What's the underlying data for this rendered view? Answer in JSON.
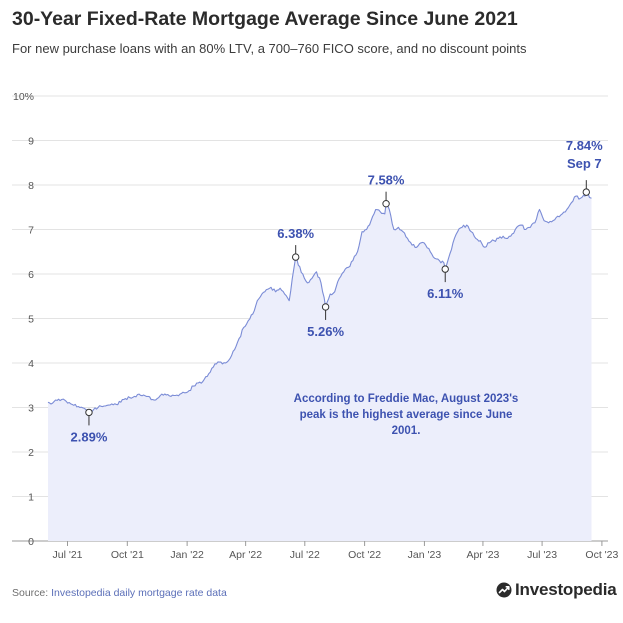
{
  "header": {
    "title": "30-Year Fixed-Rate Mortgage Average Since June 2021",
    "subtitle": "For new purchase loans with an 80% LTV, a 700–760 FICO score, and no discount points"
  },
  "footer": {
    "source_prefix": "Source: ",
    "source_link": "Investopedia daily mortgage rate data",
    "brand": "Investopedia"
  },
  "colors": {
    "line": "#7b8cd6",
    "fill": "#eceefb",
    "annotation": "#3d52b0",
    "grid": "#e3e3e3"
  },
  "chart_data": {
    "type": "area",
    "title": "30-Year Fixed-Rate Mortgage Average Since June 2021",
    "xlabel": "",
    "ylabel": "",
    "grid": "horizontal",
    "x_range": [
      "2021-06-01",
      "2023-09-25"
    ],
    "ylim": [
      0,
      10
    ],
    "y_ticks": [
      {
        "value": 0,
        "label": "0"
      },
      {
        "value": 1,
        "label": "1"
      },
      {
        "value": 2,
        "label": "2"
      },
      {
        "value": 3,
        "label": "3"
      },
      {
        "value": 4,
        "label": "4"
      },
      {
        "value": 5,
        "label": "5"
      },
      {
        "value": 6,
        "label": "6"
      },
      {
        "value": 7,
        "label": "7"
      },
      {
        "value": 8,
        "label": "8"
      },
      {
        "value": 9,
        "label": "9"
      },
      {
        "value": 10,
        "label": "10%"
      }
    ],
    "x_ticks": [
      {
        "date": "2021-07-01",
        "label": "Jul '21"
      },
      {
        "date": "2021-10-01",
        "label": "Oct '21"
      },
      {
        "date": "2022-01-01",
        "label": "Jan '22"
      },
      {
        "date": "2022-04-01",
        "label": "Apr '22"
      },
      {
        "date": "2022-07-01",
        "label": "Jul '22"
      },
      {
        "date": "2022-10-01",
        "label": "Oct '22"
      },
      {
        "date": "2023-01-01",
        "label": "Jan '23"
      },
      {
        "date": "2023-04-01",
        "label": "Apr '23"
      },
      {
        "date": "2023-07-01",
        "label": "Jul '23"
      },
      {
        "date": "2023-10-01",
        "label": "Oct '23"
      }
    ],
    "series": [
      {
        "name": "30-year fixed rate average",
        "points": [
          [
            "2021-06-01",
            3.12
          ],
          [
            "2021-06-08",
            3.1
          ],
          [
            "2021-06-15",
            3.16
          ],
          [
            "2021-06-22",
            3.18
          ],
          [
            "2021-06-29",
            3.14
          ],
          [
            "2021-07-06",
            3.08
          ],
          [
            "2021-07-13",
            3.07
          ],
          [
            "2021-07-20",
            3.0
          ],
          [
            "2021-07-27",
            2.98
          ],
          [
            "2021-08-03",
            2.89
          ],
          [
            "2021-08-10",
            2.95
          ],
          [
            "2021-08-17",
            3.0
          ],
          [
            "2021-08-24",
            3.02
          ],
          [
            "2021-08-31",
            3.05
          ],
          [
            "2021-09-07",
            3.08
          ],
          [
            "2021-09-14",
            3.07
          ],
          [
            "2021-09-21",
            3.12
          ],
          [
            "2021-09-28",
            3.2
          ],
          [
            "2021-10-05",
            3.22
          ],
          [
            "2021-10-12",
            3.25
          ],
          [
            "2021-10-19",
            3.3
          ],
          [
            "2021-10-26",
            3.28
          ],
          [
            "2021-11-02",
            3.25
          ],
          [
            "2021-11-09",
            3.18
          ],
          [
            "2021-11-16",
            3.2
          ],
          [
            "2021-11-23",
            3.3
          ],
          [
            "2021-11-30",
            3.28
          ],
          [
            "2021-12-07",
            3.25
          ],
          [
            "2021-12-14",
            3.27
          ],
          [
            "2021-12-21",
            3.3
          ],
          [
            "2021-12-28",
            3.33
          ],
          [
            "2022-01-04",
            3.38
          ],
          [
            "2022-01-11",
            3.48
          ],
          [
            "2022-01-18",
            3.55
          ],
          [
            "2022-01-25",
            3.58
          ],
          [
            "2022-02-01",
            3.7
          ],
          [
            "2022-02-08",
            3.88
          ],
          [
            "2022-02-15",
            3.98
          ],
          [
            "2022-02-22",
            4.02
          ],
          [
            "2022-03-01",
            4.0
          ],
          [
            "2022-03-08",
            4.1
          ],
          [
            "2022-03-15",
            4.3
          ],
          [
            "2022-03-22",
            4.55
          ],
          [
            "2022-03-29",
            4.8
          ],
          [
            "2022-04-05",
            4.95
          ],
          [
            "2022-04-12",
            5.1
          ],
          [
            "2022-04-19",
            5.4
          ],
          [
            "2022-04-26",
            5.55
          ],
          [
            "2022-05-03",
            5.65
          ],
          [
            "2022-05-10",
            5.7
          ],
          [
            "2022-05-17",
            5.6
          ],
          [
            "2022-05-24",
            5.68
          ],
          [
            "2022-05-31",
            5.55
          ],
          [
            "2022-06-07",
            5.4
          ],
          [
            "2022-06-14",
            6.1
          ],
          [
            "2022-06-17",
            6.38
          ],
          [
            "2022-06-21",
            6.2
          ],
          [
            "2022-06-28",
            6.0
          ],
          [
            "2022-07-05",
            5.8
          ],
          [
            "2022-07-12",
            5.9
          ],
          [
            "2022-07-19",
            6.05
          ],
          [
            "2022-07-26",
            5.8
          ],
          [
            "2022-08-02",
            5.26
          ],
          [
            "2022-08-09",
            5.55
          ],
          [
            "2022-08-16",
            5.6
          ],
          [
            "2022-08-23",
            5.9
          ],
          [
            "2022-08-30",
            6.05
          ],
          [
            "2022-09-06",
            6.15
          ],
          [
            "2022-09-13",
            6.3
          ],
          [
            "2022-09-20",
            6.5
          ],
          [
            "2022-09-27",
            6.95
          ],
          [
            "2022-10-04",
            7.0
          ],
          [
            "2022-10-11",
            7.2
          ],
          [
            "2022-10-18",
            7.45
          ],
          [
            "2022-10-25",
            7.4
          ],
          [
            "2022-11-01",
            7.35
          ],
          [
            "2022-11-03",
            7.58
          ],
          [
            "2022-11-08",
            7.45
          ],
          [
            "2022-11-15",
            7.0
          ],
          [
            "2022-11-22",
            7.05
          ],
          [
            "2022-11-29",
            6.95
          ],
          [
            "2022-12-06",
            6.8
          ],
          [
            "2022-12-13",
            6.65
          ],
          [
            "2022-12-20",
            6.6
          ],
          [
            "2022-12-27",
            6.7
          ],
          [
            "2023-01-03",
            6.65
          ],
          [
            "2023-01-10",
            6.5
          ],
          [
            "2023-01-17",
            6.35
          ],
          [
            "2023-01-24",
            6.3
          ],
          [
            "2023-01-31",
            6.25
          ],
          [
            "2023-02-02",
            6.11
          ],
          [
            "2023-02-07",
            6.35
          ],
          [
            "2023-02-14",
            6.7
          ],
          [
            "2023-02-21",
            6.95
          ],
          [
            "2023-02-28",
            7.05
          ],
          [
            "2023-03-07",
            7.1
          ],
          [
            "2023-03-14",
            6.95
          ],
          [
            "2023-03-21",
            6.8
          ],
          [
            "2023-03-28",
            6.75
          ],
          [
            "2023-04-04",
            6.6
          ],
          [
            "2023-04-11",
            6.7
          ],
          [
            "2023-04-18",
            6.75
          ],
          [
            "2023-04-25",
            6.8
          ],
          [
            "2023-05-02",
            6.85
          ],
          [
            "2023-05-09",
            6.8
          ],
          [
            "2023-05-16",
            6.9
          ],
          [
            "2023-05-23",
            7.05
          ],
          [
            "2023-05-30",
            7.1
          ],
          [
            "2023-06-06",
            7.0
          ],
          [
            "2023-06-13",
            7.05
          ],
          [
            "2023-06-20",
            7.15
          ],
          [
            "2023-06-27",
            7.45
          ],
          [
            "2023-07-04",
            7.2
          ],
          [
            "2023-07-11",
            7.15
          ],
          [
            "2023-07-18",
            7.2
          ],
          [
            "2023-07-25",
            7.3
          ],
          [
            "2023-08-01",
            7.35
          ],
          [
            "2023-08-08",
            7.45
          ],
          [
            "2023-08-15",
            7.6
          ],
          [
            "2023-08-22",
            7.75
          ],
          [
            "2023-08-29",
            7.7
          ],
          [
            "2023-09-05",
            7.75
          ],
          [
            "2023-09-07",
            7.84
          ],
          [
            "2023-09-12",
            7.72
          ],
          [
            "2023-09-15",
            7.7
          ]
        ]
      }
    ],
    "annotations": [
      {
        "date": "2021-08-03",
        "value": 2.89,
        "label": "2.89%",
        "position": "below"
      },
      {
        "date": "2022-06-17",
        "value": 6.38,
        "label": "6.38%",
        "position": "above"
      },
      {
        "date": "2022-08-02",
        "value": 5.26,
        "label": "5.26%",
        "position": "below"
      },
      {
        "date": "2022-11-03",
        "value": 7.58,
        "label": "7.58%",
        "position": "above"
      },
      {
        "date": "2023-02-02",
        "value": 6.11,
        "label": "6.11%",
        "position": "below"
      },
      {
        "date": "2023-09-07",
        "value": 7.84,
        "label": "7.84%",
        "sublabel": "Sep 7",
        "position": "above"
      }
    ],
    "note": [
      "According to Freddie Mac, August 2023's",
      "peak is the highest average since June",
      "2001."
    ]
  }
}
